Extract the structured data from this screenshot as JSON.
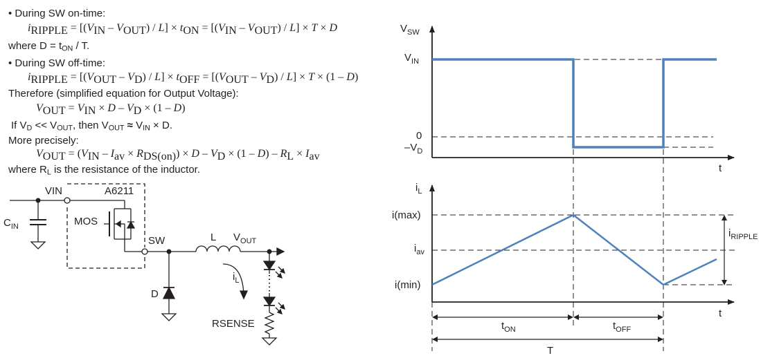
{
  "equations": {
    "on_header": "• During SW on-time:",
    "on_eq": {
      "i": "i",
      "i_sub": "RIPPLE",
      "eq1": " = [(",
      "vin": "V",
      "vin_sub": "IN",
      "minus": " – ",
      "vout": "V",
      "vout_sub": "OUT",
      "close1": ") / ",
      "L": "L",
      "times_ton": "] × ",
      "ton": "t",
      "ton_sub": "ON",
      "eq2": " = [(",
      "close2": ") / ",
      "times_T": "] × ",
      "T": "T",
      "times_D": " × ",
      "D": "D"
    },
    "where_d": {
      "pre": "where D = t",
      "sub": "ON",
      "post": " / T."
    },
    "off_header": "• During SW off-time:",
    "off_eq": {
      "vd_sub": "D",
      "toff": "t",
      "toff_sub": "OFF",
      "one_minus": " × (1 – ",
      "close": ")"
    },
    "therefore": "Therefore (simplified equation for Output Voltage):",
    "vout_eq": {
      "eq": " = ",
      "times": " × ",
      "minus": " – ",
      "paren": " × (1 – ",
      "close": ")"
    },
    "if_line": {
      "pre": "If V",
      "d": "D",
      "mid": " << V",
      "out": "OUT",
      "mid2": ", then V",
      "out2": "OUT",
      "approx": " ≈ ",
      "vin": "V",
      "in": "IN",
      "post": " × D."
    },
    "more": "More precisely:",
    "precise": {
      "open": " = (",
      "iav": "I",
      "av": "av",
      "rds": "R",
      "rds_sub": "DS(on)",
      "rl": "R",
      "rl_sub": "L",
      "close_paren": ")"
    },
    "where_rl": {
      "pre": "where R",
      "sub": "L",
      "post": " is the resistance of the inductor."
    }
  },
  "circuit": {
    "vin": "VIN",
    "chip": "A6211",
    "cin": "C",
    "cin_sub": "IN",
    "mos": "MOS",
    "sw": "SW",
    "L": "L",
    "vout": "V",
    "vout_sub": "OUT",
    "il": "i",
    "il_sub": "L",
    "d": "D",
    "rsense": "RSENSE"
  },
  "waveforms": {
    "color": "#4f81bd",
    "vsw": {
      "axis": "V",
      "axis_sub": "SW",
      "vin": "V",
      "vin_sub": "IN",
      "zero": "0",
      "neg_vd": "–V",
      "neg_vd_sub": "D",
      "t": "t"
    },
    "il": {
      "axis": "i",
      "axis_sub": "L",
      "imax": "i(max)",
      "iav": "i",
      "iav_sub": "av",
      "imin": "i(min)",
      "ripple": "i",
      "ripple_sub": "RIPPLE",
      "t": "t"
    },
    "timing": {
      "ton": "t",
      "ton_sub": "ON",
      "toff": "t",
      "toff_sub": "OFF",
      "T": "T"
    }
  }
}
